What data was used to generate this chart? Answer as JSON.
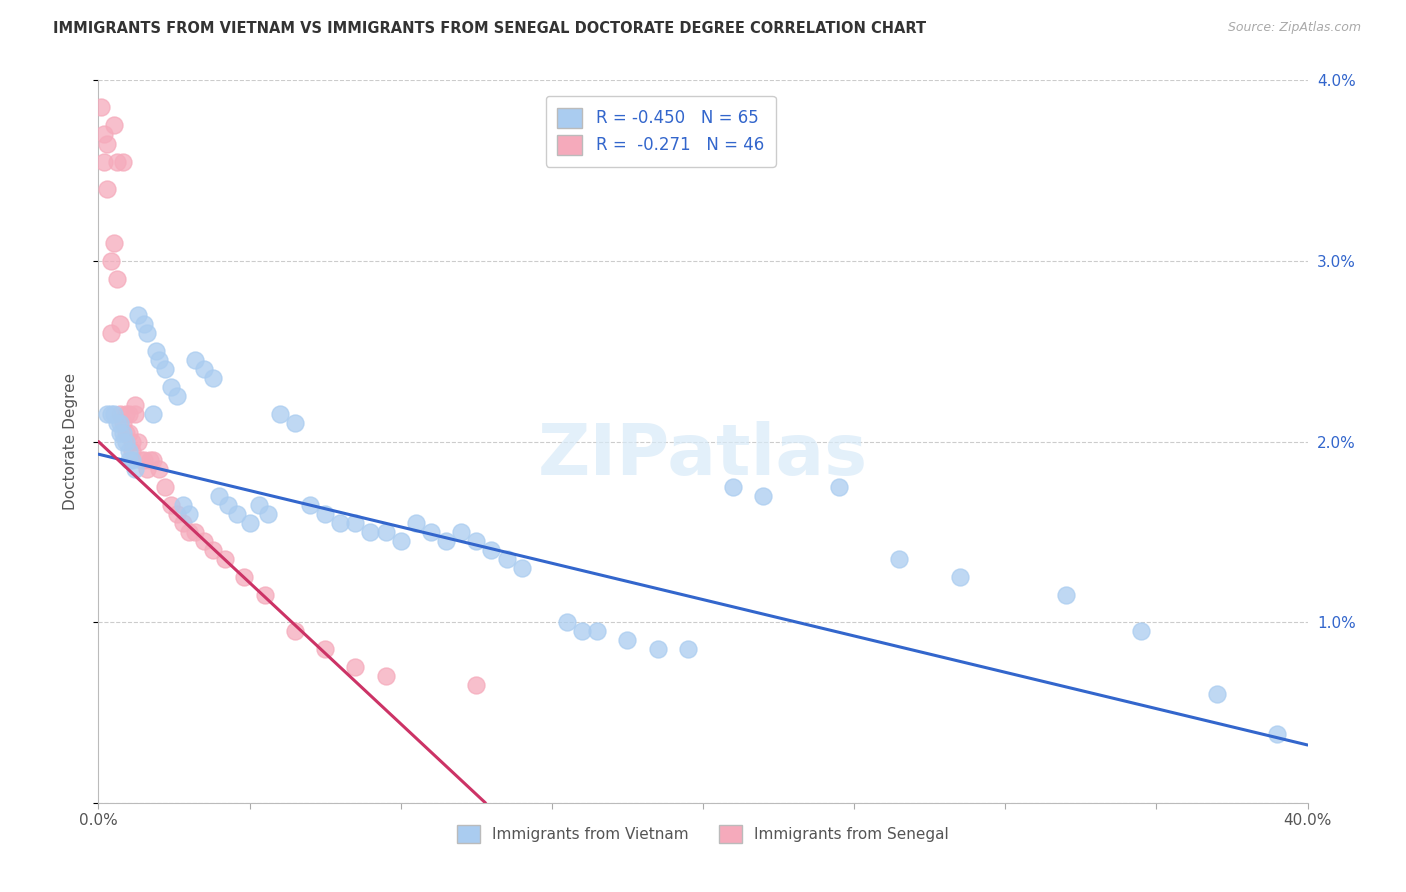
{
  "title": "IMMIGRANTS FROM VIETNAM VS IMMIGRANTS FROM SENEGAL DOCTORATE DEGREE CORRELATION CHART",
  "source": "Source: ZipAtlas.com",
  "ylabel": "Doctorate Degree",
  "xlim": [
    0.0,
    0.4
  ],
  "ylim": [
    0.0,
    0.04
  ],
  "vietnam_color": "#aaccf0",
  "senegal_color": "#f5aabb",
  "vietnam_line_color": "#3366cc",
  "senegal_line_color": "#cc3366",
  "background_color": "#ffffff",
  "grid_color": "#cccccc",
  "vietnam_scatter_x": [
    0.003,
    0.004,
    0.005,
    0.006,
    0.007,
    0.007,
    0.008,
    0.008,
    0.009,
    0.01,
    0.01,
    0.011,
    0.012,
    0.013,
    0.015,
    0.016,
    0.018,
    0.019,
    0.02,
    0.022,
    0.024,
    0.026,
    0.028,
    0.03,
    0.032,
    0.035,
    0.038,
    0.04,
    0.043,
    0.046,
    0.05,
    0.053,
    0.056,
    0.06,
    0.065,
    0.07,
    0.075,
    0.08,
    0.085,
    0.09,
    0.095,
    0.1,
    0.105,
    0.11,
    0.115,
    0.12,
    0.125,
    0.13,
    0.135,
    0.14,
    0.155,
    0.16,
    0.165,
    0.175,
    0.185,
    0.195,
    0.21,
    0.22,
    0.245,
    0.265,
    0.285,
    0.32,
    0.345,
    0.37,
    0.39
  ],
  "vietnam_scatter_y": [
    0.0215,
    0.0215,
    0.0215,
    0.021,
    0.021,
    0.0205,
    0.0205,
    0.02,
    0.02,
    0.0195,
    0.019,
    0.019,
    0.0185,
    0.027,
    0.0265,
    0.026,
    0.0215,
    0.025,
    0.0245,
    0.024,
    0.023,
    0.0225,
    0.0165,
    0.016,
    0.0245,
    0.024,
    0.0235,
    0.017,
    0.0165,
    0.016,
    0.0155,
    0.0165,
    0.016,
    0.0215,
    0.021,
    0.0165,
    0.016,
    0.0155,
    0.0155,
    0.015,
    0.015,
    0.0145,
    0.0155,
    0.015,
    0.0145,
    0.015,
    0.0145,
    0.014,
    0.0135,
    0.013,
    0.01,
    0.0095,
    0.0095,
    0.009,
    0.0085,
    0.0085,
    0.0175,
    0.017,
    0.0175,
    0.0135,
    0.0125,
    0.0115,
    0.0095,
    0.006,
    0.0038
  ],
  "senegal_scatter_x": [
    0.001,
    0.002,
    0.002,
    0.003,
    0.003,
    0.004,
    0.004,
    0.005,
    0.005,
    0.006,
    0.006,
    0.007,
    0.007,
    0.008,
    0.008,
    0.009,
    0.009,
    0.01,
    0.01,
    0.011,
    0.011,
    0.012,
    0.012,
    0.013,
    0.014,
    0.015,
    0.016,
    0.017,
    0.018,
    0.02,
    0.022,
    0.024,
    0.026,
    0.028,
    0.03,
    0.032,
    0.035,
    0.038,
    0.042,
    0.048,
    0.055,
    0.065,
    0.075,
    0.085,
    0.095,
    0.125
  ],
  "senegal_scatter_y": [
    0.0385,
    0.037,
    0.0355,
    0.0365,
    0.034,
    0.03,
    0.026,
    0.0375,
    0.031,
    0.029,
    0.0355,
    0.0265,
    0.0215,
    0.021,
    0.0355,
    0.0215,
    0.0205,
    0.0215,
    0.0205,
    0.02,
    0.0195,
    0.022,
    0.0215,
    0.02,
    0.019,
    0.019,
    0.0185,
    0.019,
    0.019,
    0.0185,
    0.0175,
    0.0165,
    0.016,
    0.0155,
    0.015,
    0.015,
    0.0145,
    0.014,
    0.0135,
    0.0125,
    0.0115,
    0.0095,
    0.0085,
    0.0075,
    0.007,
    0.0065
  ],
  "vietnam_line_x0": 0.0,
  "vietnam_line_x1": 0.4,
  "vietnam_line_y0": 0.0193,
  "vietnam_line_y1": 0.0032,
  "senegal_line_x0": 0.0,
  "senegal_line_x1": 0.128,
  "senegal_line_y0": 0.02,
  "senegal_line_y1": 0.0
}
